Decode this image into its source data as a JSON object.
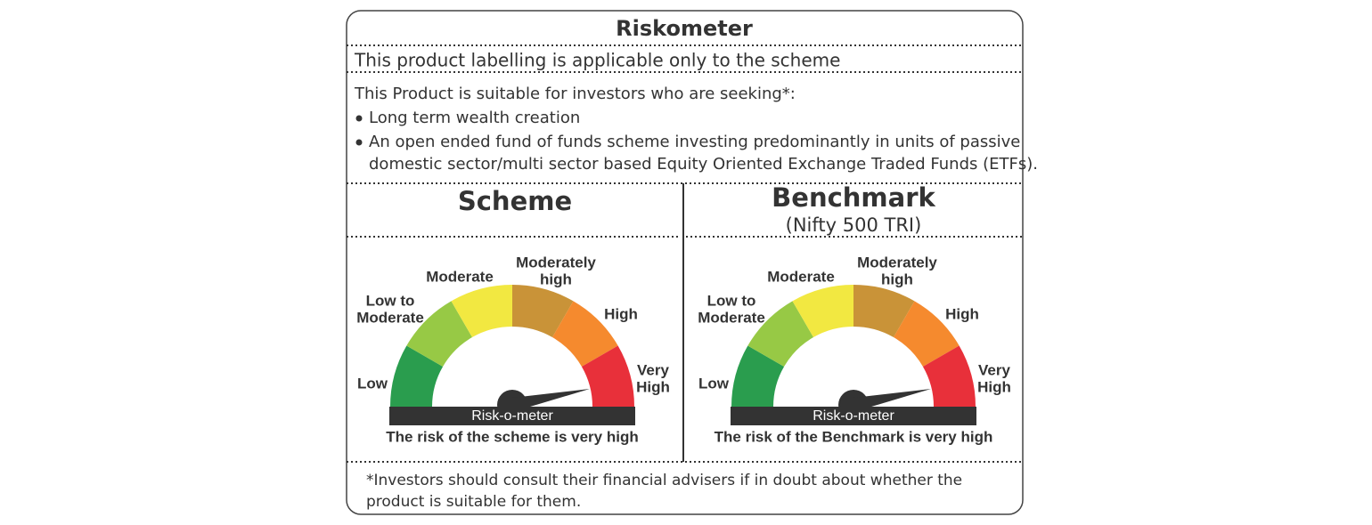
{
  "title": "Riskometer",
  "subtitle": "This product labelling is applicable only to the scheme",
  "intro": "This Product is suitable for investors who are seeking*:",
  "bullets": [
    "Long term wealth creation",
    [
      "An open ended fund of funds scheme investing predominantly in units of passive",
      "domestic sector/multi sector based Equity Oriented Exchange Traded Funds (ETFs)."
    ]
  ],
  "panels": [
    {
      "heading": "Scheme",
      "levels": [
        [
          "Low"
        ],
        [
          "Low to",
          "Moderate"
        ],
        [
          "Moderate"
        ],
        [
          "Moderately",
          "high"
        ],
        [
          "High"
        ],
        [
          "Very",
          "High"
        ]
      ],
      "meter_label": "Risk-o-meter",
      "caption": "The risk of the scheme is very high"
    },
    {
      "heading": "Benchmark",
      "subheading": "(Nifty 500 TRI)",
      "levels": [
        [
          "Low"
        ],
        [
          "Low to",
          "Moderate"
        ],
        [
          "Moderate"
        ],
        [
          "Moderately",
          "high"
        ],
        [
          "High"
        ],
        [
          "Very",
          "High"
        ]
      ],
      "meter_label": "Risk-o-meter",
      "caption": "The risk of the Benchmark is very high"
    }
  ],
  "footnote": [
    "*Investors should consult their financial advisers if in doubt about whether the",
    "product is suitable for them."
  ]
}
